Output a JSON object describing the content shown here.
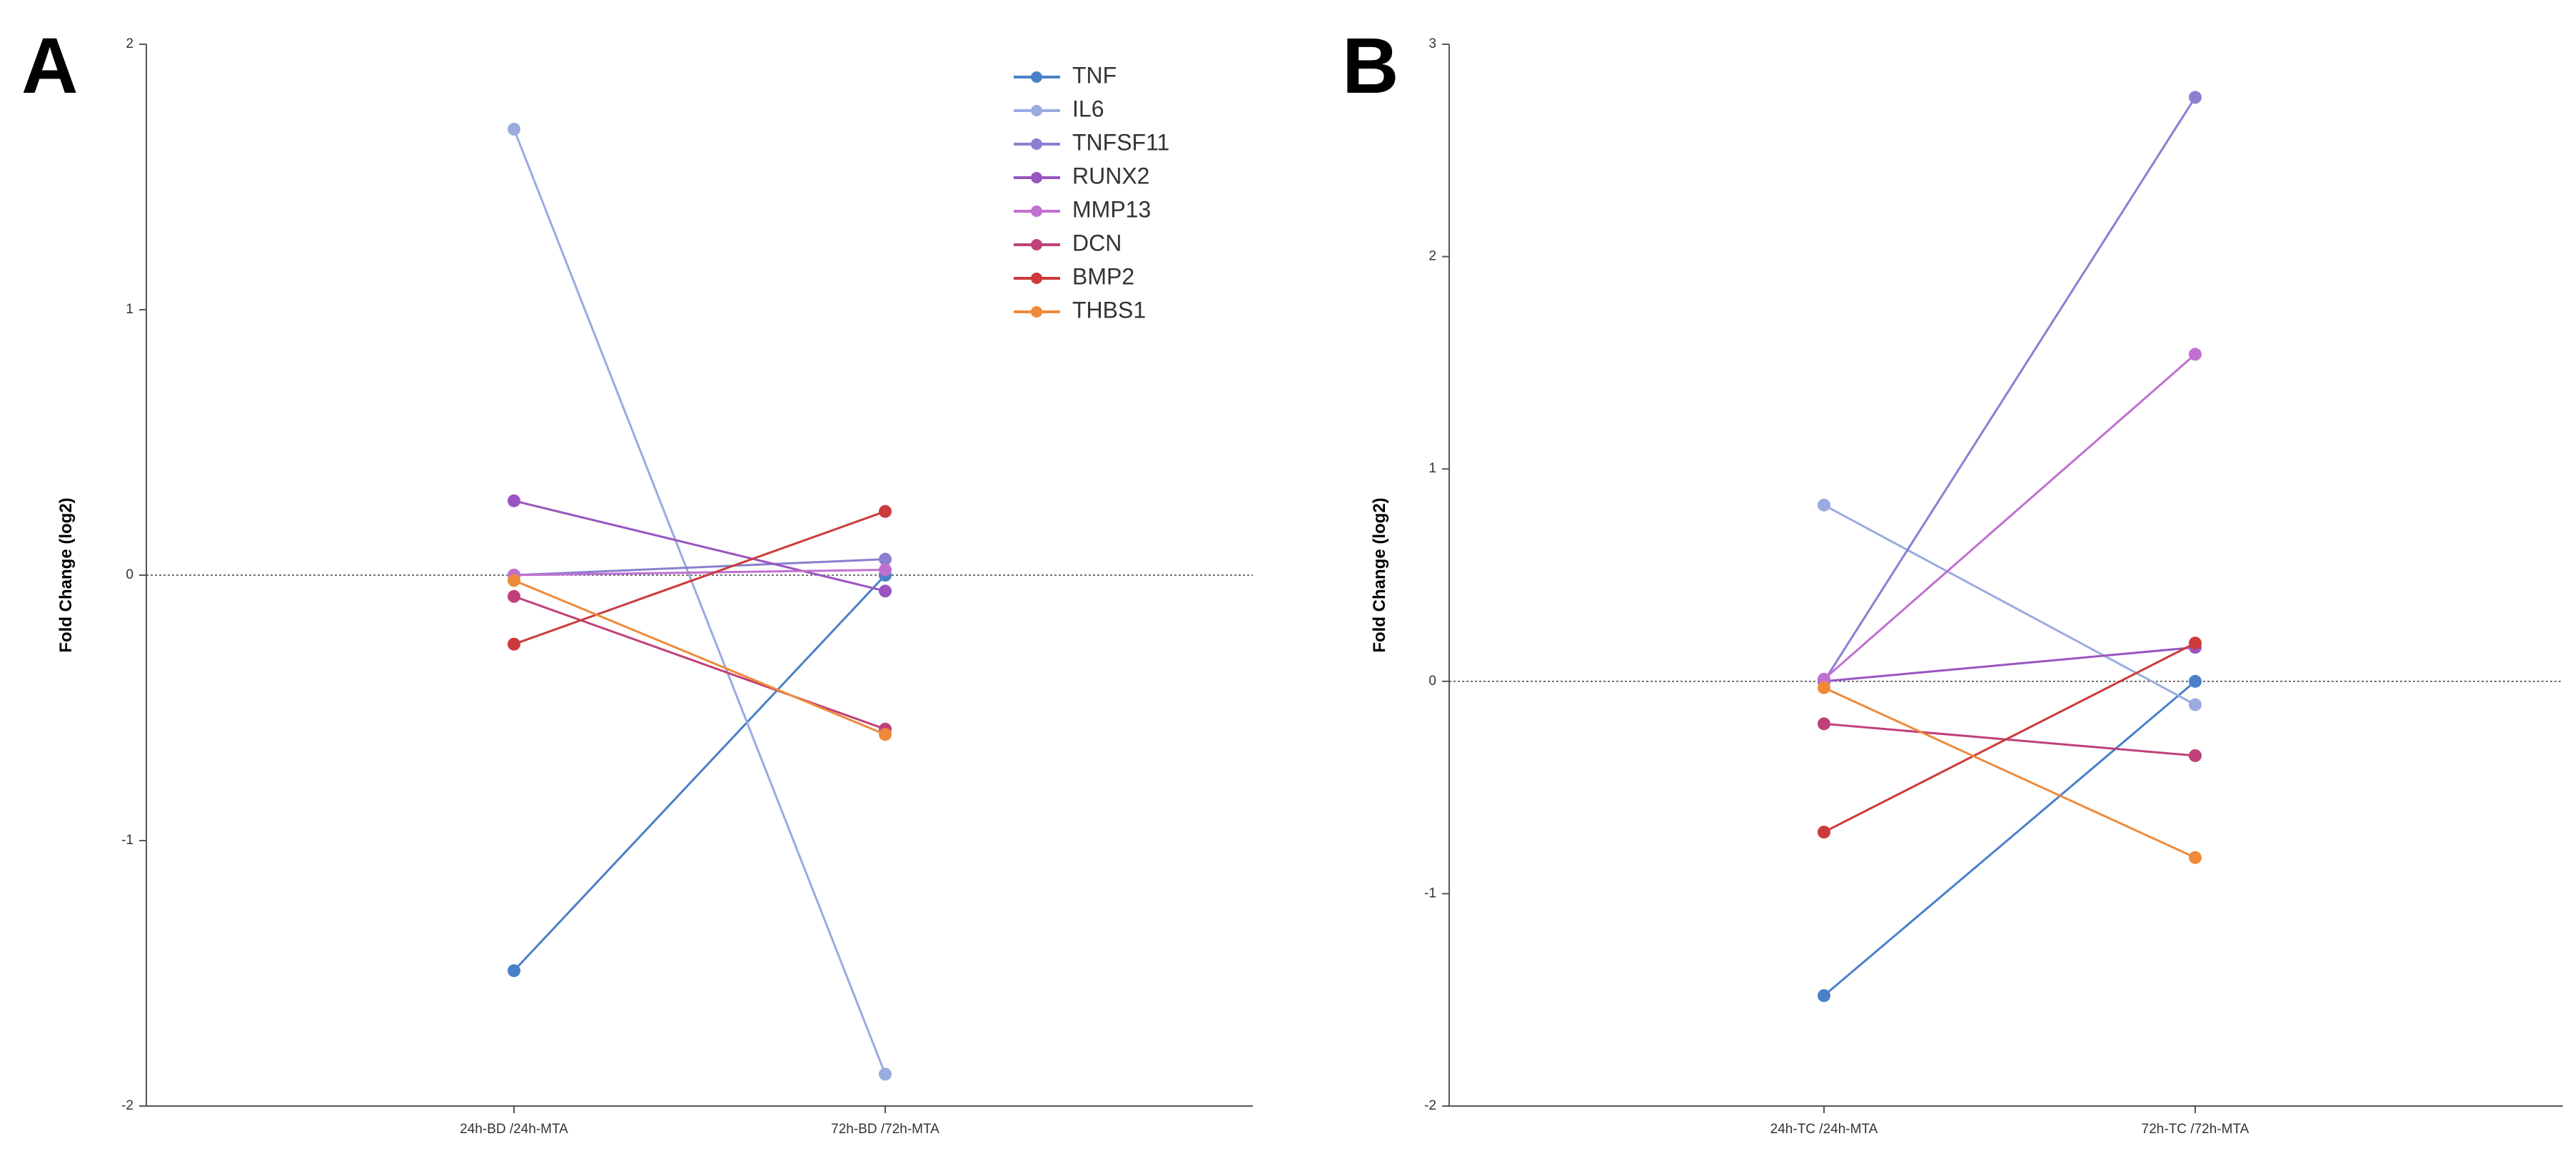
{
  "colors": {
    "TNF": "#4a80c8",
    "IL6": "#9aabe0",
    "TNFSF11": "#8a7fd0",
    "RUNX2": "#9a55c0",
    "MMP13": "#c070d0",
    "DCN": "#c0407a",
    "BMP2": "#cc3a3a",
    "THBS1": "#ee8a3a"
  },
  "legend": [
    "TNF",
    "IL6",
    "TNFSF11",
    "RUNX2",
    "MMP13",
    "DCN",
    "BMP2",
    "THBS1"
  ],
  "chart_data": [
    {
      "type": "line",
      "panel": "A",
      "ylabel": "Fold Change (log2)",
      "xlabel": "",
      "categories": [
        "24h-BD /24h-MTA",
        "72h-BD /72h-MTA"
      ],
      "ylim": [
        -2,
        2
      ],
      "yticks": [
        -2,
        -1,
        0,
        1,
        2
      ],
      "zero_line": true,
      "legend_position": "top-right",
      "series": [
        {
          "name": "TNF",
          "values": [
            -1.49,
            0.0
          ]
        },
        {
          "name": "IL6",
          "values": [
            1.68,
            -1.88
          ]
        },
        {
          "name": "TNFSF11",
          "values": [
            0.0,
            0.06
          ]
        },
        {
          "name": "RUNX2",
          "values": [
            0.28,
            -0.06
          ]
        },
        {
          "name": "MMP13",
          "values": [
            0.0,
            0.02
          ]
        },
        {
          "name": "DCN",
          "values": [
            -0.08,
            -0.58
          ]
        },
        {
          "name": "BMP2",
          "values": [
            -0.26,
            0.24
          ]
        },
        {
          "name": "THBS1",
          "values": [
            -0.02,
            -0.6
          ]
        }
      ]
    },
    {
      "type": "line",
      "panel": "B",
      "ylabel": "Fold Change (log2)",
      "xlabel": "",
      "categories": [
        "24h-TC /24h-MTA",
        "72h-TC /72h-MTA"
      ],
      "ylim": [
        -2,
        3
      ],
      "yticks": [
        -2,
        -1,
        0,
        1,
        2,
        3
      ],
      "zero_line": true,
      "series": [
        {
          "name": "TNF",
          "values": [
            -1.48,
            0.0
          ]
        },
        {
          "name": "IL6",
          "values": [
            0.83,
            -0.11
          ]
        },
        {
          "name": "TNFSF11",
          "values": [
            0.0,
            2.75
          ]
        },
        {
          "name": "RUNX2",
          "values": [
            0.0,
            0.16
          ]
        },
        {
          "name": "MMP13",
          "values": [
            0.01,
            1.54
          ]
        },
        {
          "name": "DCN",
          "values": [
            -0.2,
            -0.35
          ]
        },
        {
          "name": "BMP2",
          "values": [
            -0.71,
            0.18
          ]
        },
        {
          "name": "THBS1",
          "values": [
            -0.03,
            -0.83
          ]
        }
      ]
    }
  ]
}
